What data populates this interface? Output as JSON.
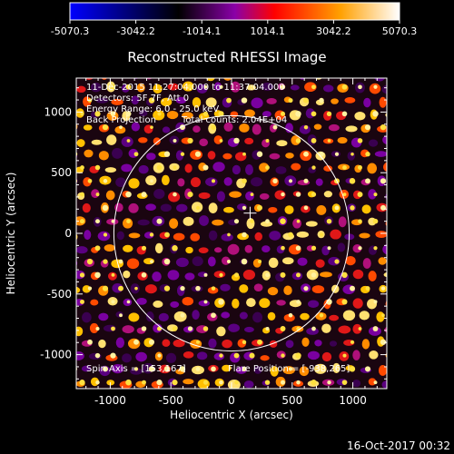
{
  "colorbar": {
    "ticks": [
      "-5070.3",
      "-3042.2",
      "-1014.1",
      "1014.1",
      "3042.2",
      "5070.3"
    ],
    "colors": [
      "#0000ff",
      "#000000",
      "#8a00a8",
      "#ff0000",
      "#ffa000",
      "#ffffff"
    ]
  },
  "title": "Reconstructed RHESSI Image",
  "info": {
    "line1": "11-Dec-2015 11:27:04.000 to 11:37:04.000",
    "line2": "Detectors: 5F 7F, Att 0",
    "line3": "Energy Range: 6.0 - 25.0 keV",
    "line4_left": "Back Projection",
    "line4_right": "Total counts: 2.04E+04"
  },
  "footer": {
    "spin_axis": "Spin Axis = [153,167]",
    "flare_position": "Flare Position = [-938,265]",
    "timestamp": "16-Oct-2017 00:32"
  },
  "chart_data": {
    "type": "heatmap",
    "title": "Reconstructed RHESSI Image",
    "xlabel": "Heliocentric X (arcsec)",
    "ylabel": "Heliocentric Y (arcsec)",
    "xlim": [
      -1280,
      1280
    ],
    "ylim": [
      -1280,
      1280
    ],
    "x_ticks": [
      -1000,
      -500,
      0,
      500,
      1000
    ],
    "y_ticks": [
      -1000,
      -500,
      0,
      500,
      1000
    ],
    "x_tick_labels": [
      "-1000",
      "-500",
      "0",
      "500",
      "1000"
    ],
    "y_tick_labels": [
      "-1000",
      "-500",
      "0",
      "500",
      "1000"
    ],
    "value_range": [
      -5070.3,
      5070.3
    ],
    "solar_limb_radius": 970,
    "spin_axis": [
      153,
      167
    ],
    "colors": {
      "limb": "#ffffff",
      "text": "#ffffff"
    }
  }
}
